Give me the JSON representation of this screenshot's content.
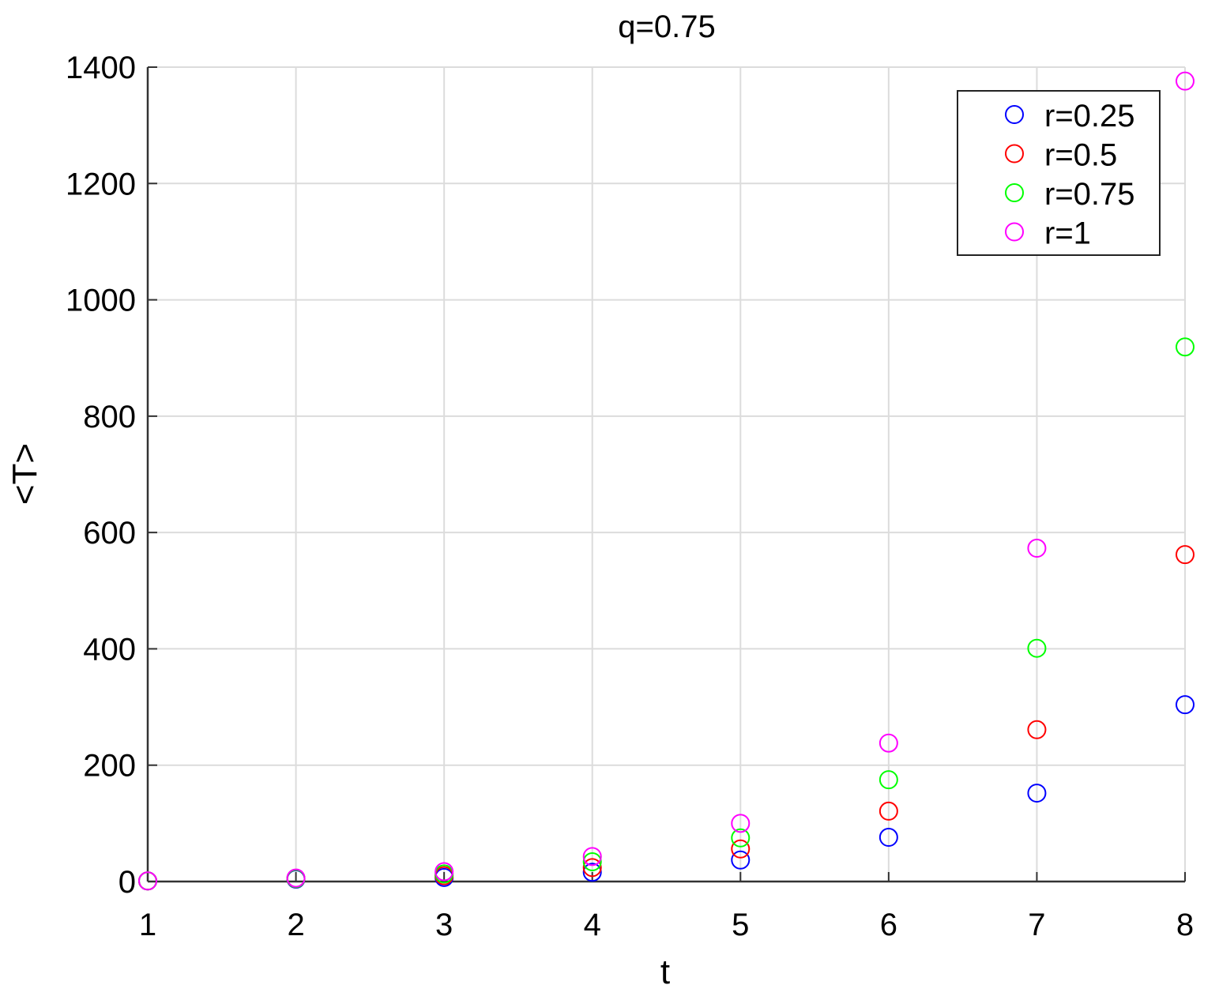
{
  "chart_data": {
    "type": "scatter",
    "title": "q=0.75",
    "xlabel": "t",
    "ylabel": "<T>",
    "xlim": [
      1,
      8
    ],
    "ylim": [
      0,
      1400
    ],
    "xticks": [
      "1",
      "2",
      "3",
      "4",
      "5",
      "6",
      "7",
      "8"
    ],
    "yticks": [
      "0",
      "200",
      "400",
      "600",
      "800",
      "1000",
      "1200",
      "1400"
    ],
    "grid": true,
    "legend_position": "top-right",
    "x": [
      1,
      2,
      3,
      4,
      5,
      6,
      7,
      8
    ],
    "series": [
      {
        "name": "r=0.25",
        "color": "#0000ff",
        "values": [
          1,
          4,
          7,
          16,
          37,
          76,
          152,
          304
        ]
      },
      {
        "name": "r=0.5",
        "color": "#ff0000",
        "values": [
          1,
          5,
          10,
          24,
          56,
          121,
          261,
          562
        ]
      },
      {
        "name": "r=0.75",
        "color": "#00ff00",
        "values": [
          1,
          5,
          13,
          34,
          75,
          175,
          401,
          919
        ]
      },
      {
        "name": "r=1",
        "color": "#ff00ff",
        "values": [
          1,
          6,
          17,
          43,
          100,
          238,
          573,
          1376
        ]
      }
    ]
  }
}
